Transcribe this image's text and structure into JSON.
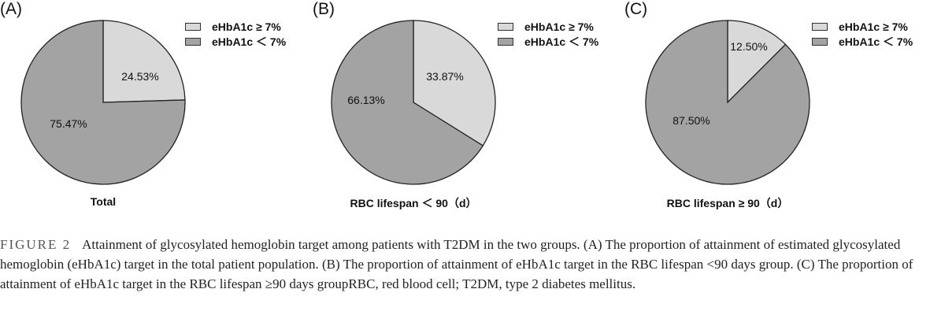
{
  "colors": {
    "light": "#d9d9d9",
    "dark": "#a3a3a3",
    "stroke": "#222222"
  },
  "legend": {
    "ge": "eHbA1c ≥ 7%",
    "lt": "eHbA1c ＜ 7%"
  },
  "chart_data": [
    {
      "type": "pie",
      "panel": "(A)",
      "title": "Total",
      "slices": [
        {
          "name": "eHbA1c ≥ 7%",
          "value": 24.53,
          "label": "24.53%"
        },
        {
          "name": "eHbA1c ＜ 7%",
          "value": 75.47,
          "label": "75.47%"
        }
      ]
    },
    {
      "type": "pie",
      "panel": "(B)",
      "title": "RBC lifespan ＜ 90（d）",
      "slices": [
        {
          "name": "eHbA1c ≥ 7%",
          "value": 33.87,
          "label": "33.87%"
        },
        {
          "name": "eHbA1c ＜ 7%",
          "value": 66.13,
          "label": "66.13%"
        }
      ]
    },
    {
      "type": "pie",
      "panel": "(C)",
      "title": "RBC lifespan ≥ 90（d）",
      "slices": [
        {
          "name": "eHbA1c ≥ 7%",
          "value": 12.5,
          "label": "12.50%"
        },
        {
          "name": "eHbA1c ＜ 7%",
          "value": 87.5,
          "label": "87.50%"
        }
      ]
    }
  ],
  "caption": {
    "label": "FIGURE 2",
    "text": "Attainment of glycosylated hemoglobin target among patients with T2DM in the two groups. (A) The proportion of attainment of estimated glycosylated hemoglobin (eHbA1c) target in the total patient population. (B) The proportion of attainment of eHbA1c target in the RBC lifespan <90 days group. (C) The proportion of attainment of eHbA1c target in the RBC lifespan ≥90 days groupRBC, red blood cell; T2DM, type 2 diabetes mellitus."
  }
}
